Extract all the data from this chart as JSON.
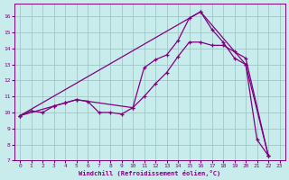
{
  "xlabel": "Windchill (Refroidissement éolien,°C)",
  "bg_color": "#c8ecec",
  "line_color": "#800080",
  "grid_color": "#a0c8c8",
  "xlim": [
    -0.5,
    23.5
  ],
  "ylim": [
    7,
    16.8
  ],
  "xticks": [
    0,
    1,
    2,
    3,
    4,
    5,
    6,
    7,
    8,
    9,
    10,
    11,
    12,
    13,
    14,
    15,
    16,
    17,
    18,
    19,
    20,
    21,
    22,
    23
  ],
  "yticks": [
    7,
    8,
    9,
    10,
    11,
    12,
    13,
    14,
    15,
    16
  ],
  "line1_x": [
    0,
    1,
    2,
    3,
    4,
    5,
    6,
    7,
    8,
    9,
    10,
    11,
    12,
    13,
    14,
    15,
    16,
    17,
    18,
    19,
    20,
    21,
    22
  ],
  "line1_y": [
    9.8,
    10.1,
    10.0,
    10.4,
    10.6,
    10.8,
    10.7,
    10.0,
    10.0,
    9.9,
    10.3,
    12.8,
    13.3,
    13.6,
    14.5,
    15.9,
    16.3,
    15.2,
    14.4,
    13.4,
    13.0,
    8.3,
    7.3
  ],
  "line2_x": [
    0,
    3,
    4,
    5,
    10,
    11,
    12,
    13,
    14,
    15,
    16,
    17,
    18,
    19,
    20,
    22
  ],
  "line2_y": [
    9.8,
    10.4,
    10.6,
    10.8,
    10.3,
    11.0,
    11.8,
    12.5,
    13.5,
    14.4,
    14.4,
    14.2,
    14.2,
    13.8,
    13.4,
    7.3
  ],
  "line3_x": [
    0,
    16,
    20,
    22
  ],
  "line3_y": [
    9.8,
    16.3,
    13.0,
    7.3
  ],
  "marker": "+"
}
